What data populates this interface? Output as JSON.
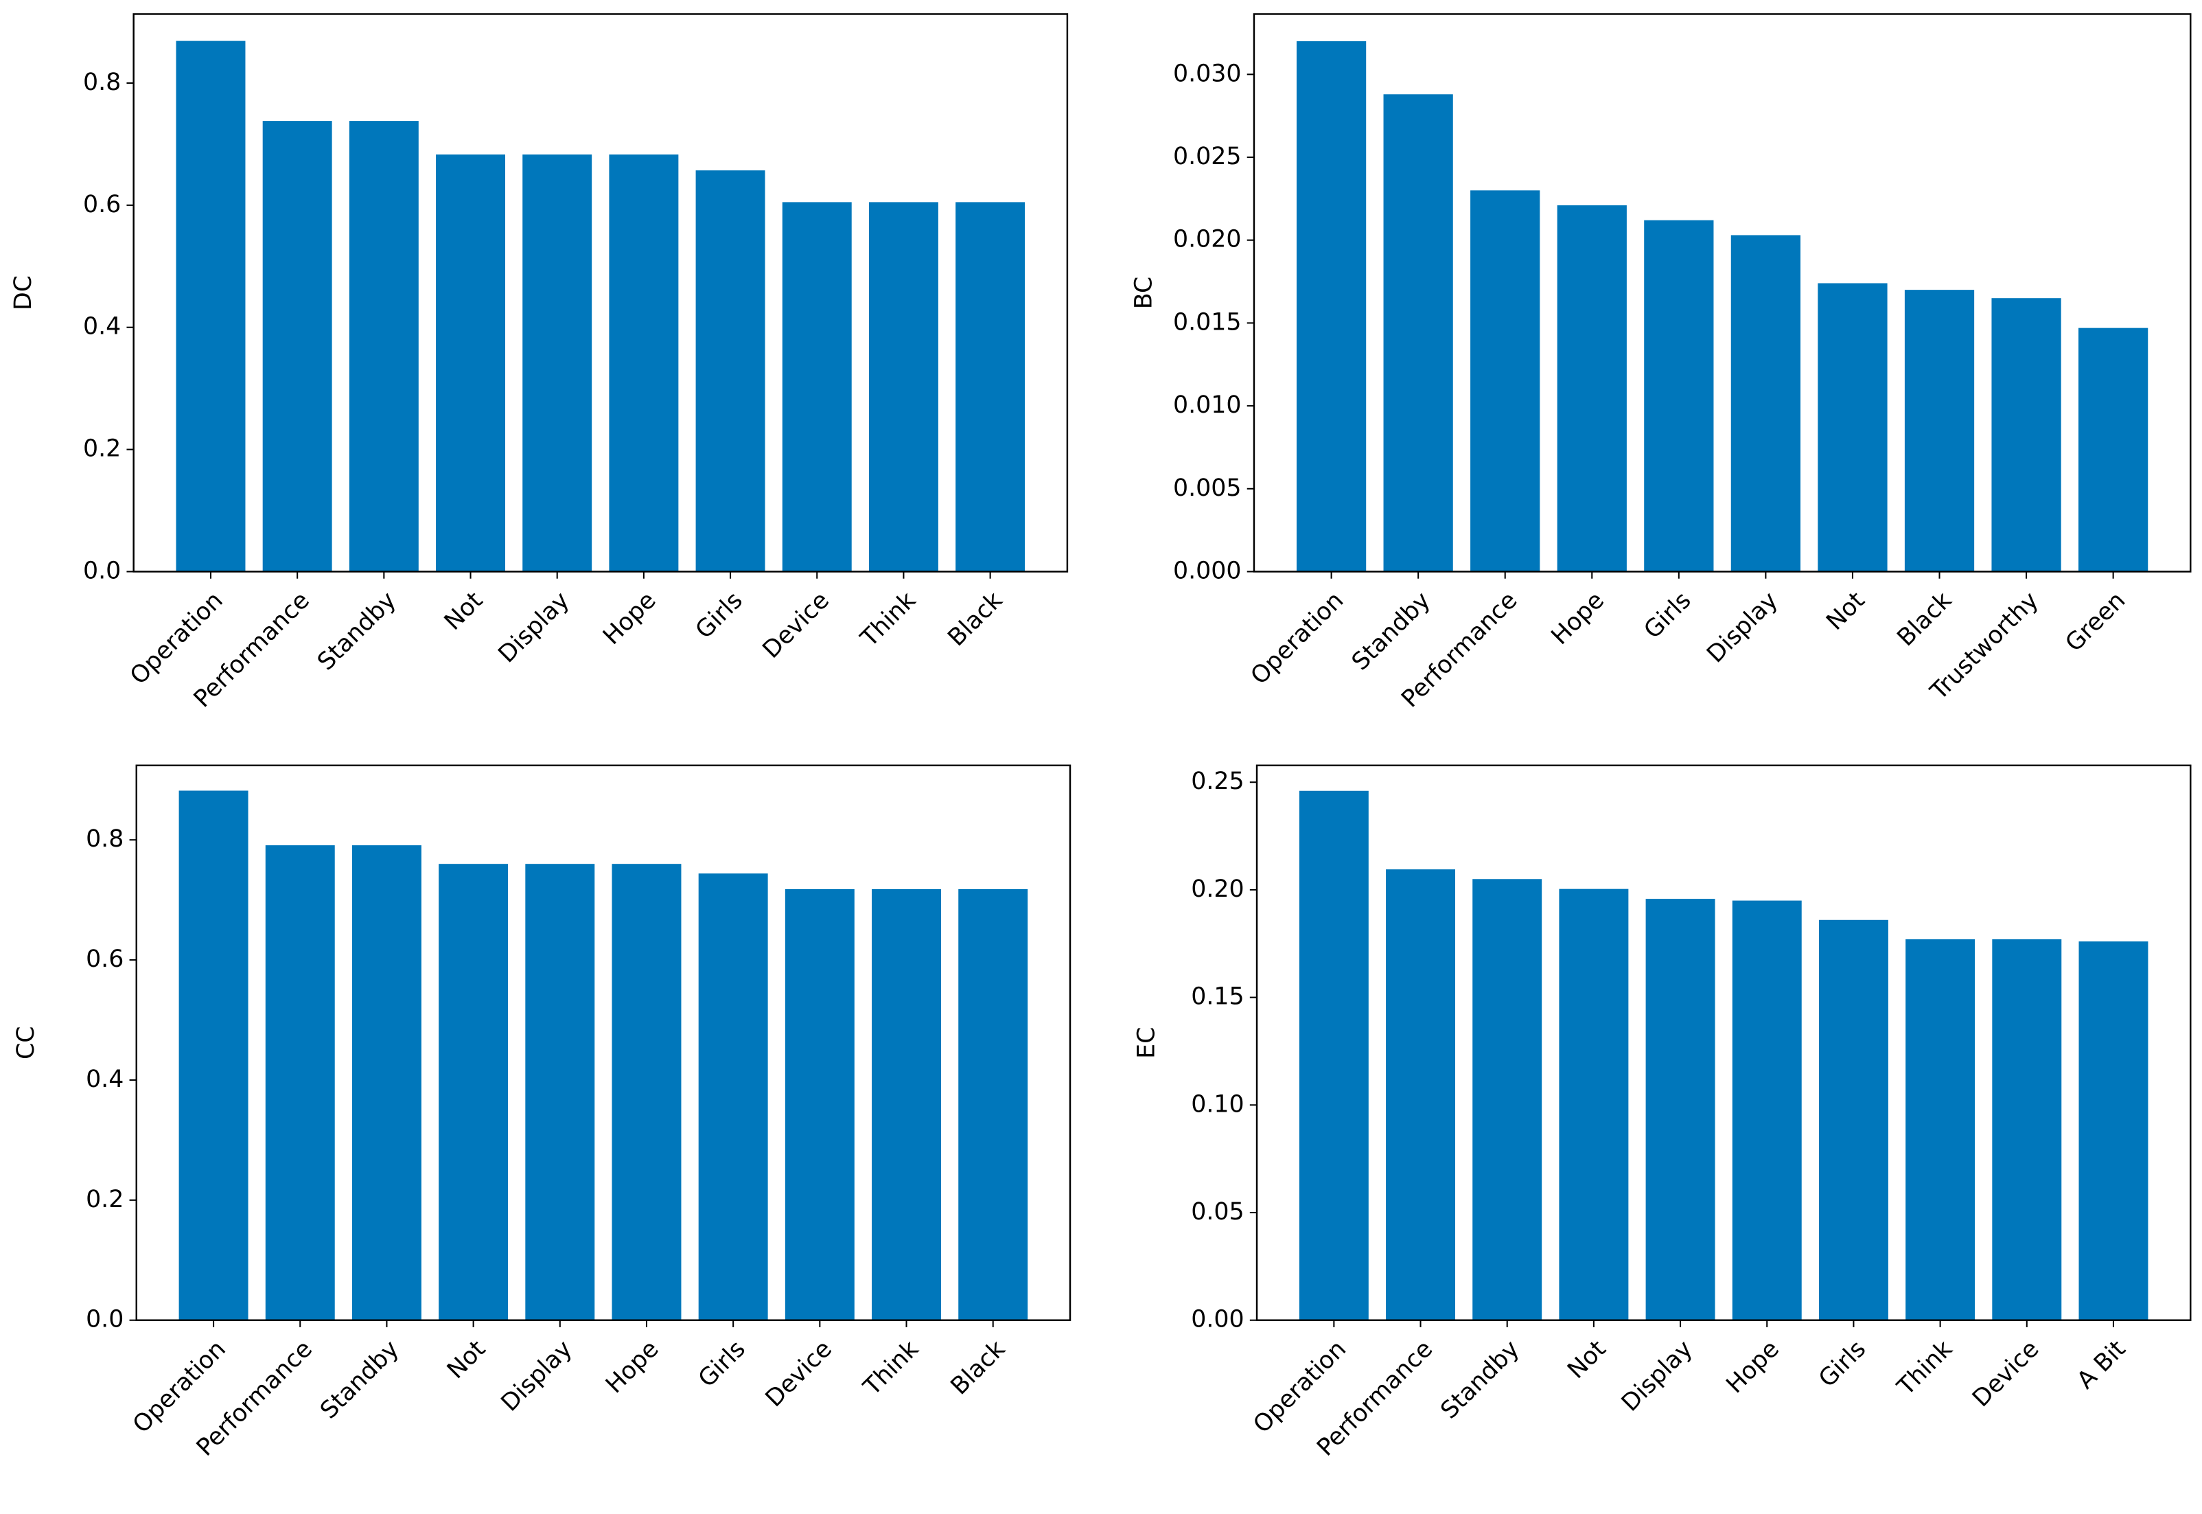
{
  "chart_data": [
    {
      "type": "bar",
      "ylabel": "DC",
      "color": "#0077bb",
      "categories": [
        "Operation",
        "Performance",
        "Standby",
        "Not",
        "Display",
        "Hope",
        "Girls",
        "Device",
        "Think",
        "Black"
      ],
      "values": [
        0.869,
        0.738,
        0.738,
        0.683,
        0.683,
        0.683,
        0.657,
        0.605,
        0.605,
        0.605
      ],
      "ylim": [
        0,
        0.913
      ],
      "yticks": [
        {
          "value": 0,
          "label": "0.0"
        },
        0.2,
        0.4,
        0.6,
        0.8
      ]
    },
    {
      "type": "bar",
      "ylabel": "BC",
      "color": "#0077bb",
      "categories": [
        "Operation",
        "Standby",
        "Performance",
        "Hope",
        "Girls",
        "Display",
        "Not",
        "Black",
        "Trustworthy",
        "Green"
      ],
      "values": [
        0.032,
        0.0288,
        0.023,
        0.0221,
        0.0212,
        0.0203,
        0.0174,
        0.017,
        0.0165,
        0.0147
      ],
      "ylim": [
        0,
        0.03364
      ],
      "yticks": [
        {
          "value": 0,
          "label": "0.000"
        },
        0.005,
        {
          "value": 0.01,
          "label": "0.010"
        },
        0.015,
        {
          "value": 0.02,
          "label": "0.020"
        },
        0.025,
        {
          "value": 0.03,
          "label": "0.030"
        }
      ]
    },
    {
      "type": "bar",
      "ylabel": "CC",
      "color": "#0077bb",
      "categories": [
        "Operation",
        "Performance",
        "Standby",
        "Not",
        "Display",
        "Hope",
        "Girls",
        "Device",
        "Think",
        "Black"
      ],
      "values": [
        0.882,
        0.791,
        0.791,
        0.76,
        0.76,
        0.76,
        0.744,
        0.718,
        0.718,
        0.718
      ],
      "ylim": [
        0,
        0.924
      ],
      "yticks": [
        {
          "value": 0,
          "label": "0.0"
        },
        0.2,
        0.4,
        0.6,
        0.8
      ]
    },
    {
      "type": "bar",
      "ylabel": "EC",
      "color": "#0077bb",
      "categories": [
        "Operation",
        "Performance",
        "Standby",
        "Not",
        "Display",
        "Hope",
        "Girls",
        "Think",
        "Device",
        "A Bit"
      ],
      "values": [
        0.246,
        0.2095,
        0.205,
        0.2004,
        0.1958,
        0.195,
        0.186,
        0.177,
        0.177,
        0.176
      ],
      "ylim": [
        0,
        0.2578
      ],
      "yticks": [
        {
          "value": 0,
          "label": "0.00"
        },
        0.05,
        {
          "value": 0.1,
          "label": "0.10"
        },
        0.15,
        {
          "value": 0.2,
          "label": "0.20"
        },
        0.25
      ]
    }
  ]
}
